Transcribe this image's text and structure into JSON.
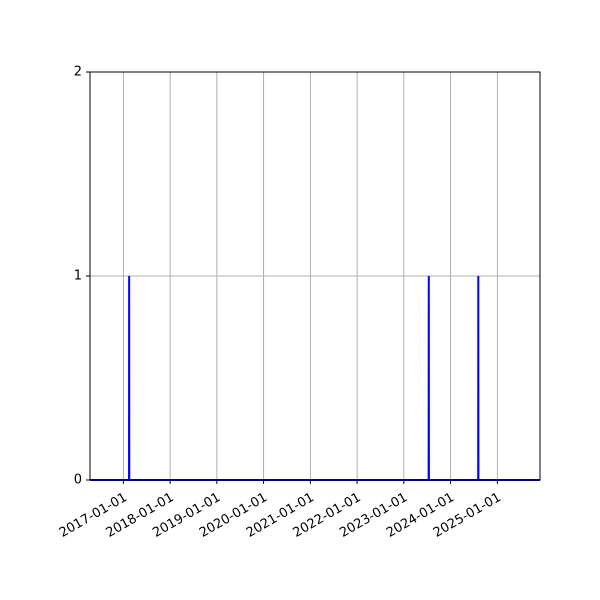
{
  "chart_data": {
    "type": "line",
    "title": "",
    "xlabel": "",
    "ylabel": "",
    "x_tick_labels": [
      "2017-01-01",
      "2018-01-01",
      "2019-01-01",
      "2020-01-01",
      "2021-01-01",
      "2022-01-01",
      "2023-01-01",
      "2024-01-01",
      "2025-01-01"
    ],
    "y_tick_labels": [
      "0",
      "1",
      "2"
    ],
    "xlim": [
      "2016-04-15",
      "2025-11-30"
    ],
    "ylim": [
      0,
      2
    ],
    "grid": true,
    "series": [
      {
        "color": "#0000ff",
        "points": [
          {
            "x": "2016-04-15",
            "y": 0
          },
          {
            "x": "2017-02-14",
            "y": 0
          },
          {
            "x": "2017-02-15",
            "y": 1
          },
          {
            "x": "2017-02-16",
            "y": 0
          },
          {
            "x": "2023-07-14",
            "y": 0
          },
          {
            "x": "2023-07-15",
            "y": 1
          },
          {
            "x": "2023-07-16",
            "y": 0
          },
          {
            "x": "2024-08-04",
            "y": 0
          },
          {
            "x": "2024-08-05",
            "y": 1
          },
          {
            "x": "2024-08-06",
            "y": 0
          },
          {
            "x": "2025-11-30",
            "y": 0
          }
        ]
      }
    ]
  }
}
